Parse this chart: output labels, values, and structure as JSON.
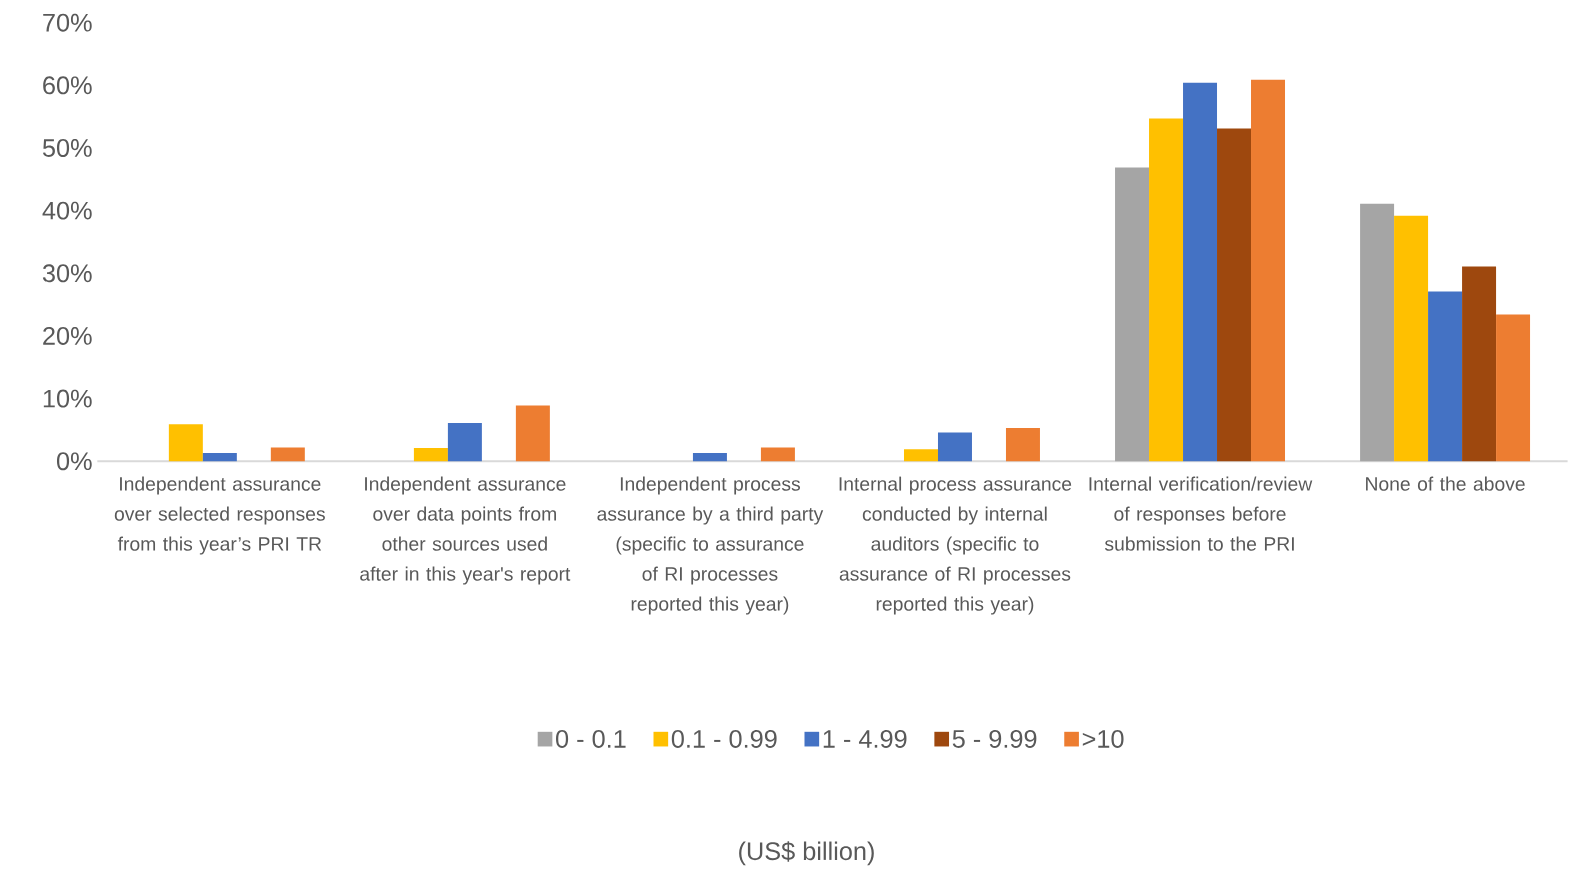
{
  "chart_data": {
    "type": "bar",
    "annotations": [
      "(US$ billion)"
    ],
    "categories": [
      "Independent assurance over selected responses from this year’s PRI TR",
      "Independent assurance over data points from other sources used after in this year's report",
      "Independent process assurance by a third party (specific to assurance of RI processes reported this year)",
      "Internal process assurance conducted by internal auditors (specific to assurance of RI processes reported this year)",
      "Internal verification/review of responses before submission to the PRI",
      "None of the above"
    ],
    "series": [
      {
        "name": "0 - 0.1",
        "color": "#a5a5a5",
        "values": [
          null,
          null,
          null,
          null,
          46.9,
          41.1
        ]
      },
      {
        "name": "0.1 - 0.99",
        "color": "#ffc000",
        "values": [
          5.9,
          2.1,
          null,
          1.9,
          54.7,
          39.2
        ]
      },
      {
        "name": "1 - 4.99",
        "color": "#4472c4",
        "values": [
          1.3,
          6.1,
          1.3,
          4.6,
          60.4,
          27.1
        ]
      },
      {
        "name": "5 - 9.99",
        "color": "#9e480e",
        "values": [
          null,
          null,
          null,
          null,
          53.1,
          31.1
        ]
      },
      {
        "name": ">10",
        "color": "#ed7d31",
        "values": [
          2.2,
          8.9,
          2.2,
          5.3,
          60.9,
          23.4
        ]
      }
    ],
    "ylim": [
      0,
      70
    ],
    "yticks": [
      {
        "value": 0,
        "label": "0%"
      },
      {
        "value": 10,
        "label": "10%"
      },
      {
        "value": 20,
        "label": "20%"
      },
      {
        "value": 30,
        "label": "30%"
      },
      {
        "value": 40,
        "label": "40%"
      },
      {
        "value": 50,
        "label": "50%"
      },
      {
        "value": 60,
        "label": "60%"
      },
      {
        "value": 70,
        "label": "70%"
      }
    ],
    "legend": "bottom"
  }
}
